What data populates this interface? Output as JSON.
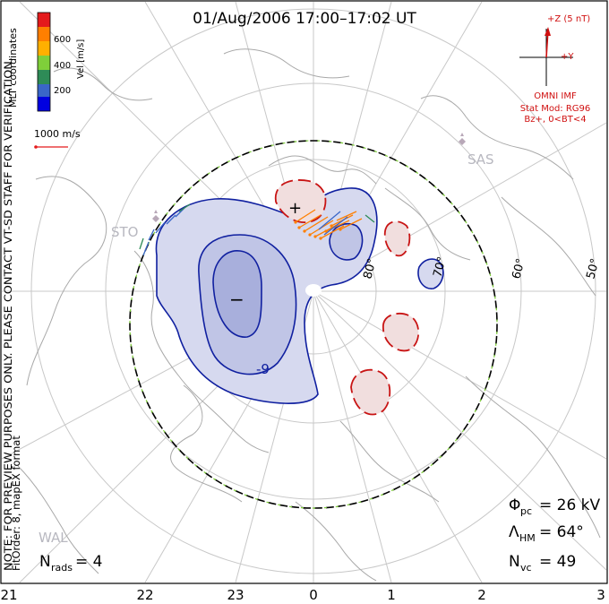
{
  "title": "01/Aug/2006 17:00–17:02 UT",
  "side_note_line1": "NOTE: FOR PREVIEW PURPOSES ONLY. PLEASE CONTACT VT-SD STAFF FOR VERIFICATION.",
  "side_note_line2": "FitOrder: 8, mapEX format",
  "coord_label": "MLT coordinates",
  "color_scale": {
    "label": "Vel [m/s]",
    "ticks": [
      "600",
      "400",
      "200"
    ],
    "colors": [
      "#e41a1c",
      "#ff7f00",
      "#ffb000",
      "#7fcf3a",
      "#2e8b57",
      "#3a66c8",
      "#0000e0"
    ]
  },
  "vector_scale": "1000 m/s",
  "imf": {
    "z_label": "+Z (5 nT)",
    "y_label": "+Y",
    "source": "OMNI IMF",
    "model_line1": "Stat Mod: RG96",
    "model_line2": "Bz+, 0<BT<4"
  },
  "stations": {
    "sas": "SAS",
    "sto": "STO",
    "wal": "WAL"
  },
  "lat_labels": [
    "80°",
    "70°",
    "60°",
    "50°"
  ],
  "mlt_labels": [
    "21",
    "22",
    "23",
    "0",
    "1",
    "2",
    "3"
  ],
  "potential_markers": {
    "max": "+",
    "min": "−"
  },
  "contour_label": "-9",
  "stats": {
    "phi_label": "Φ",
    "phi_sub": "pc",
    "phi_value": "= 26 kV",
    "lambda_label": "Λ",
    "lambda_sub": "HM",
    "lambda_value": "= 64°",
    "nvc_label": "N",
    "nvc_sub": "vc",
    "nvc_value": "= 49",
    "nrads_label": "N",
    "nrads_sub": "rads",
    "nrads_value": "= 4"
  },
  "colors": {
    "positive_contour": "#c81414",
    "negative_contour": "#1020a0",
    "negative_fill": "#d6d9ef",
    "positive_fill": "#f1dede",
    "coastline": "#a8a8a8",
    "grid": "#c8c8c8",
    "boundary_green": "#7fcf3a",
    "imf_red": "#d01010"
  }
}
